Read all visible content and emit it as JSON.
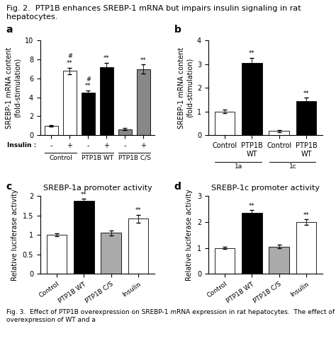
{
  "annotations": [
    "Fig. 2.  PTP1B enhances SREBP-1 mRNA but impairs insulin signaling in rat hepatocytes.",
    "Fig. 3.  Effect of PTP1B overexpression on SREBP-1 mRNA expression in rat hepatocytes.  The effect of overexpression of WT and a"
  ],
  "chart_data": [
    {
      "type": "bar",
      "panel_label": "a",
      "ylabel": "SREBP-1 mRNA content\n(fold-stimulation)",
      "xlabel": "Insulin :",
      "categories": [
        "-",
        "+",
        "-",
        "+",
        "-",
        "+"
      ],
      "groups": [
        "Control",
        "PTP1B WT",
        "PTP1B C/S"
      ],
      "values": [
        1.0,
        6.8,
        4.5,
        7.2,
        0.65,
        7.0
      ],
      "errors": [
        0.08,
        0.35,
        0.25,
        0.45,
        0.08,
        0.45
      ],
      "colors": [
        "white",
        "white",
        "black",
        "black",
        "#888888",
        "#888888"
      ],
      "ylim": [
        0,
        10
      ],
      "yticks": [
        0,
        2,
        4,
        6,
        8,
        10
      ],
      "annotations": [
        [],
        [
          "**",
          "#"
        ],
        [
          "**",
          "#"
        ],
        [
          "**"
        ],
        [],
        [
          "**"
        ]
      ]
    },
    {
      "type": "bar",
      "panel_label": "b",
      "ylabel": "SREBP-1 mRNA content\n(fold-stimulation)",
      "categories": [
        "Control",
        "PTP1B\nWT",
        "Control",
        "PTP1B\nWT"
      ],
      "groups": [
        "1a",
        "1c"
      ],
      "values": [
        1.0,
        3.05,
        0.18,
        1.45
      ],
      "errors": [
        0.08,
        0.22,
        0.04,
        0.14
      ],
      "colors": [
        "white",
        "black",
        "white",
        "black"
      ],
      "ylim": [
        0,
        4
      ],
      "yticks": [
        0,
        1,
        2,
        3,
        4
      ],
      "annotations": [
        [],
        [
          "**"
        ],
        [],
        [
          "**"
        ]
      ]
    },
    {
      "type": "bar",
      "panel_label": "c",
      "title": "SREBP-1a promoter activity",
      "ylabel": "Relative luciferase activity",
      "categories": [
        "Control",
        "PTP1B WT",
        "PTP1B C/S",
        "Insulin"
      ],
      "values": [
        1.0,
        1.88,
        1.05,
        1.42
      ],
      "errors": [
        0.04,
        0.05,
        0.07,
        0.1
      ],
      "colors": [
        "white",
        "black",
        "#aaaaaa",
        "white"
      ],
      "ylim": [
        0,
        2
      ],
      "yticks": [
        0,
        0.5,
        1,
        1.5,
        2
      ],
      "annotations": [
        [],
        [
          "**"
        ],
        [],
        [
          "**"
        ]
      ]
    },
    {
      "type": "bar",
      "panel_label": "d",
      "title": "SREBP-1c promoter activity",
      "ylabel": "Relative luciferase activity",
      "categories": [
        "Control",
        "PTP1B WT",
        "PTP1B C/S",
        "Insulin"
      ],
      "values": [
        1.0,
        2.35,
        1.05,
        2.0
      ],
      "errors": [
        0.05,
        0.1,
        0.07,
        0.1
      ],
      "colors": [
        "white",
        "black",
        "#aaaaaa",
        "white"
      ],
      "ylim": [
        0,
        3
      ],
      "yticks": [
        0,
        1,
        2,
        3
      ],
      "annotations": [
        [],
        [
          "**"
        ],
        [],
        [
          "**"
        ]
      ]
    }
  ]
}
